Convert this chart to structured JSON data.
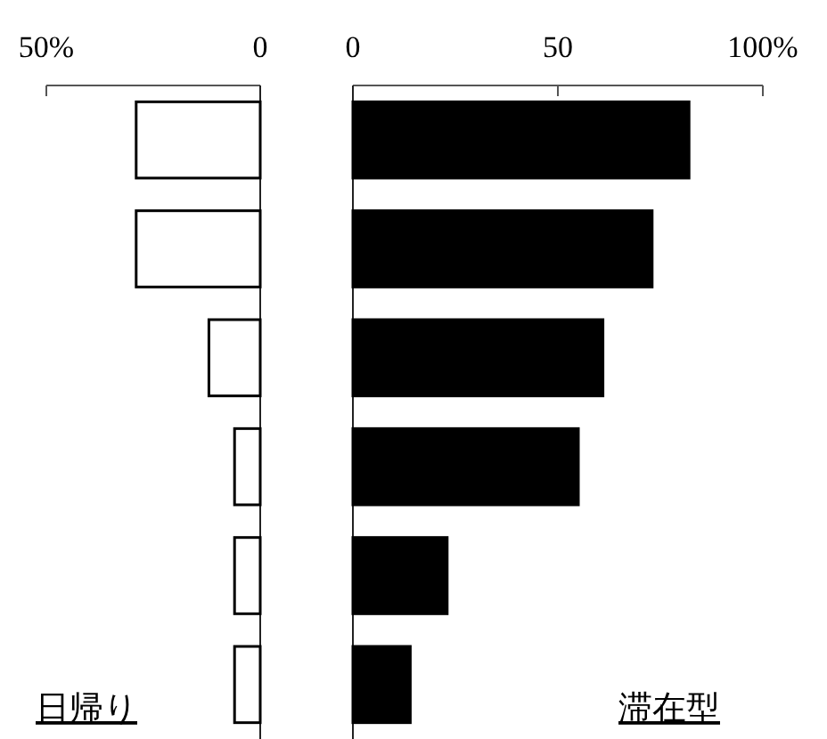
{
  "chart_data": [
    {
      "type": "bar",
      "orientation": "horizontal",
      "categories": [
        null,
        null,
        null,
        null,
        null,
        null
      ],
      "values": [
        29,
        29,
        12,
        6,
        6,
        6
      ],
      "color": "#ffffff",
      "xlim": [
        50,
        0
      ],
      "xticks": [
        {
          "value": 50,
          "label": "50%"
        },
        {
          "value": 0,
          "label": "0"
        }
      ],
      "annotations": [
        "日帰り"
      ]
    },
    {
      "type": "bar",
      "orientation": "horizontal",
      "categories": [
        null,
        null,
        null,
        null,
        null,
        null
      ],
      "values": [
        82,
        73,
        61,
        55,
        23,
        14
      ],
      "color": "#000000",
      "xlim": [
        0,
        100
      ],
      "xticks": [
        {
          "value": 0,
          "label": "0"
        },
        {
          "value": 50,
          "label": "50"
        },
        {
          "value": 100,
          "label": "100%"
        }
      ],
      "annotations": [
        "滞在型"
      ]
    }
  ]
}
